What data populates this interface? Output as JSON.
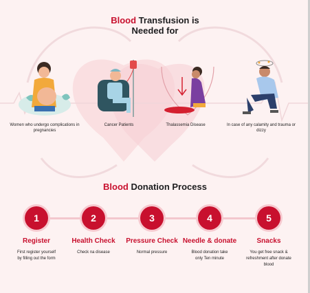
{
  "transfusion": {
    "title_accent": "Blood",
    "title_rest": "Transfusion is",
    "title_line2": "Needed for",
    "cases": [
      {
        "caption": "Women who undergo complications in pregnancies",
        "icon": "pregnant-woman-icon"
      },
      {
        "caption": "Cancer Patients",
        "icon": "cancer-patient-icon"
      },
      {
        "caption": "Thalassemia Disease",
        "icon": "thalassemia-icon"
      },
      {
        "caption": "In case of any calamity and trauma or dizzy",
        "icon": "dizzy-person-icon"
      }
    ]
  },
  "process": {
    "title_accent": "Blood",
    "title_rest": "Donation Process",
    "steps": [
      {
        "number": "1",
        "name": "Register",
        "desc": "First register yourself by filling out the form"
      },
      {
        "number": "2",
        "name": "Health Check",
        "desc": "Check na disease"
      },
      {
        "number": "3",
        "name": "Pressure Check",
        "desc": "Normal pressure"
      },
      {
        "number": "4",
        "name": "Needle & donate",
        "desc": "Blood donation take only Ten minute"
      },
      {
        "number": "5",
        "name": "Snacks",
        "desc": "You get free snack & refreshment after donate blood"
      }
    ]
  },
  "colors": {
    "accent": "#c8102e",
    "background": "#fdf2f2",
    "connector": "#f3c7cd"
  }
}
